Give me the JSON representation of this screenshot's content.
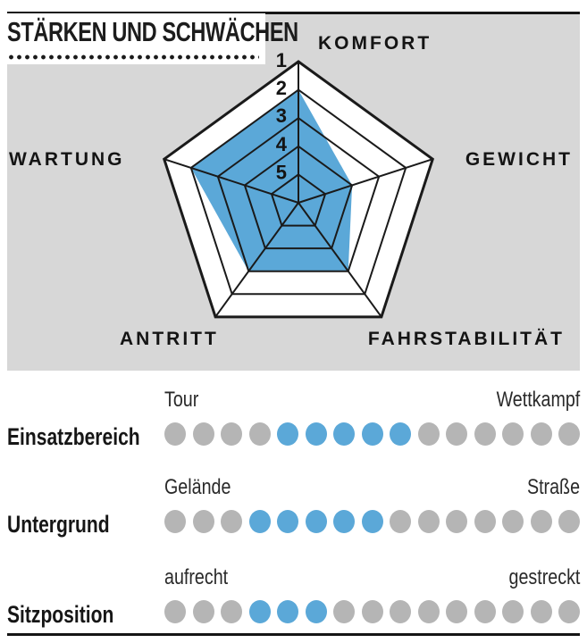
{
  "title": "STÄRKEN UND SCHWÄCHEN",
  "colors": {
    "accent_blue": "#5BA8D8",
    "dot_gray": "#B5B5B5",
    "panel_gray": "#D7D7D7",
    "line_black": "#1A1A1A"
  },
  "chart_data": [
    {
      "type": "radar",
      "title": "STÄRKEN UND SCHWÄCHEN",
      "axes": [
        "KOMFORT",
        "GEWICHT",
        "FAHRSTABILITÄT",
        "ANTRITT",
        "WARTUNG"
      ],
      "values": [
        2,
        4,
        3,
        3,
        2
      ],
      "scale": {
        "min": 1,
        "max": 5,
        "note_orientation": "1 = outer ring (best), 5 = inner ring",
        "ticks": [
          "1",
          "2",
          "3",
          "4",
          "5"
        ]
      },
      "rings": 5,
      "fill_color": "#5BA8D8",
      "grid_color": "#1A1A1A"
    },
    {
      "type": "dot_scale",
      "rows": [
        {
          "label": "Einsatzbereich",
          "left_end": "Tour",
          "right_end": "Wettkampf",
          "dots_total": 15,
          "filled_start": 5,
          "filled_end": 9
        },
        {
          "label": "Untergrund",
          "left_end": "Gelände",
          "right_end": "Straße",
          "dots_total": 15,
          "filled_start": 4,
          "filled_end": 8
        },
        {
          "label": "Sitzposition",
          "left_end": "aufrecht",
          "right_end": "gestreckt",
          "dots_total": 15,
          "filled_start": 4,
          "filled_end": 6
        }
      ],
      "dot_color_filled": "#5BA8D8",
      "dot_color_empty": "#B5B5B5"
    }
  ]
}
